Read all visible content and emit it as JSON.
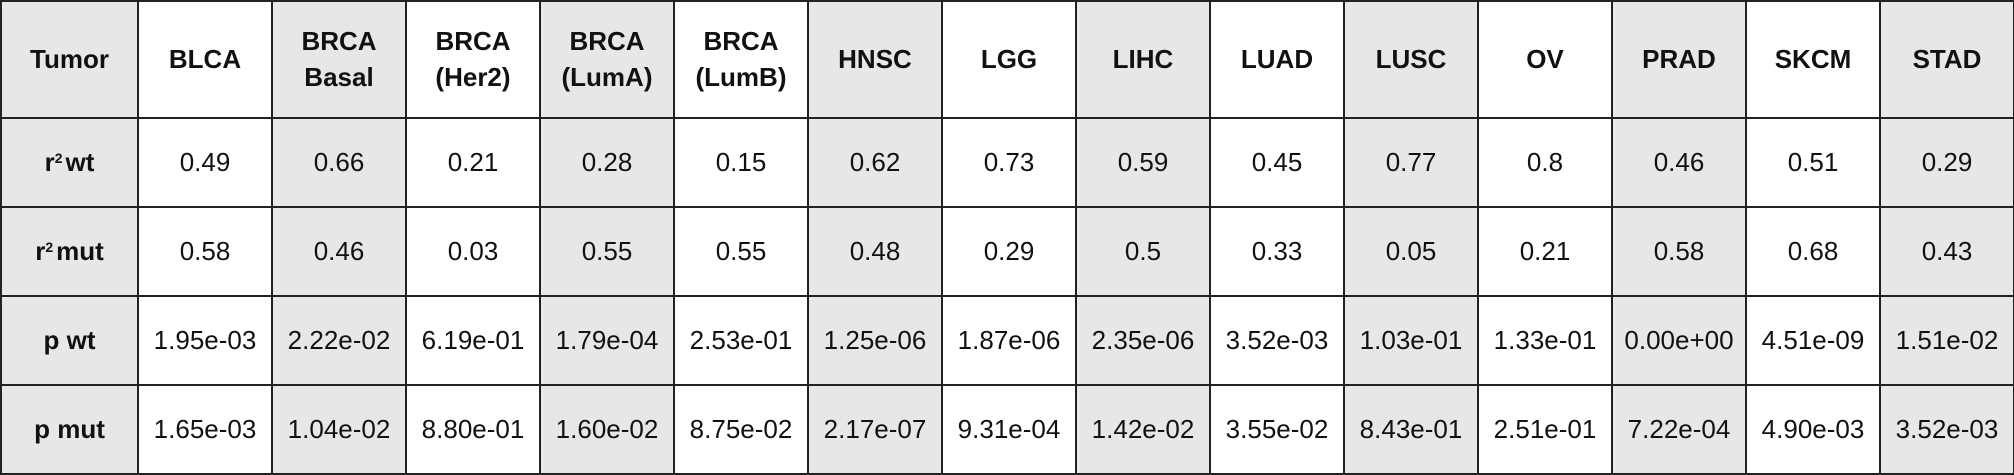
{
  "table": {
    "corner_label": "Tumor",
    "columns": [
      {
        "line1": "BLCA",
        "line2": ""
      },
      {
        "line1": "BRCA",
        "line2": "Basal"
      },
      {
        "line1": "BRCA",
        "line2": "(Her2)"
      },
      {
        "line1": "BRCA",
        "line2": "(LumA)"
      },
      {
        "line1": "BRCA",
        "line2": "(LumB)"
      },
      {
        "line1": "HNSC",
        "line2": ""
      },
      {
        "line1": "LGG",
        "line2": ""
      },
      {
        "line1": "LIHC",
        "line2": ""
      },
      {
        "line1": "LUAD",
        "line2": ""
      },
      {
        "line1": "LUSC",
        "line2": ""
      },
      {
        "line1": "OV",
        "line2": ""
      },
      {
        "line1": "PRAD",
        "line2": ""
      },
      {
        "line1": "SKCM",
        "line2": ""
      },
      {
        "line1": "STAD",
        "line2": ""
      }
    ],
    "rows": [
      {
        "label_pre": "r",
        "label_sup": "2",
        "label_post": "wt",
        "values": [
          "0.49",
          "0.66",
          "0.21",
          "0.28",
          "0.15",
          "0.62",
          "0.73",
          "0.59",
          "0.45",
          "0.77",
          "0.8",
          "0.46",
          "0.51",
          "0.29"
        ]
      },
      {
        "label_pre": "r",
        "label_sup": "2",
        "label_post": "mut",
        "values": [
          "0.58",
          "0.46",
          "0.03",
          "0.55",
          "0.55",
          "0.48",
          "0.29",
          "0.5",
          "0.33",
          "0.05",
          "0.21",
          "0.58",
          "0.68",
          "0.43"
        ]
      },
      {
        "label_pre": "p wt",
        "label_sup": "",
        "label_post": "",
        "values": [
          "1.95e-03",
          "2.22e-02",
          "6.19e-01",
          "1.79e-04",
          "2.53e-01",
          "1.25e-06",
          "1.87e-06",
          "2.35e-06",
          "3.52e-03",
          "1.03e-01",
          "1.33e-01",
          "0.00e+00",
          "4.51e-09",
          "1.51e-02"
        ]
      },
      {
        "label_pre": "p mut",
        "label_sup": "",
        "label_post": "",
        "values": [
          "1.65e-03",
          "1.04e-02",
          "8.80e-01",
          "1.60e-02",
          "8.75e-02",
          "2.17e-07",
          "9.31e-04",
          "1.42e-02",
          "3.55e-02",
          "8.43e-01",
          "2.51e-01",
          "7.22e-04",
          "4.90e-03",
          "3.52e-03"
        ]
      }
    ],
    "colors": {
      "shaded_cell": "#e8e6e6",
      "plain_cell": "#ffffff",
      "border": "#222222"
    }
  }
}
